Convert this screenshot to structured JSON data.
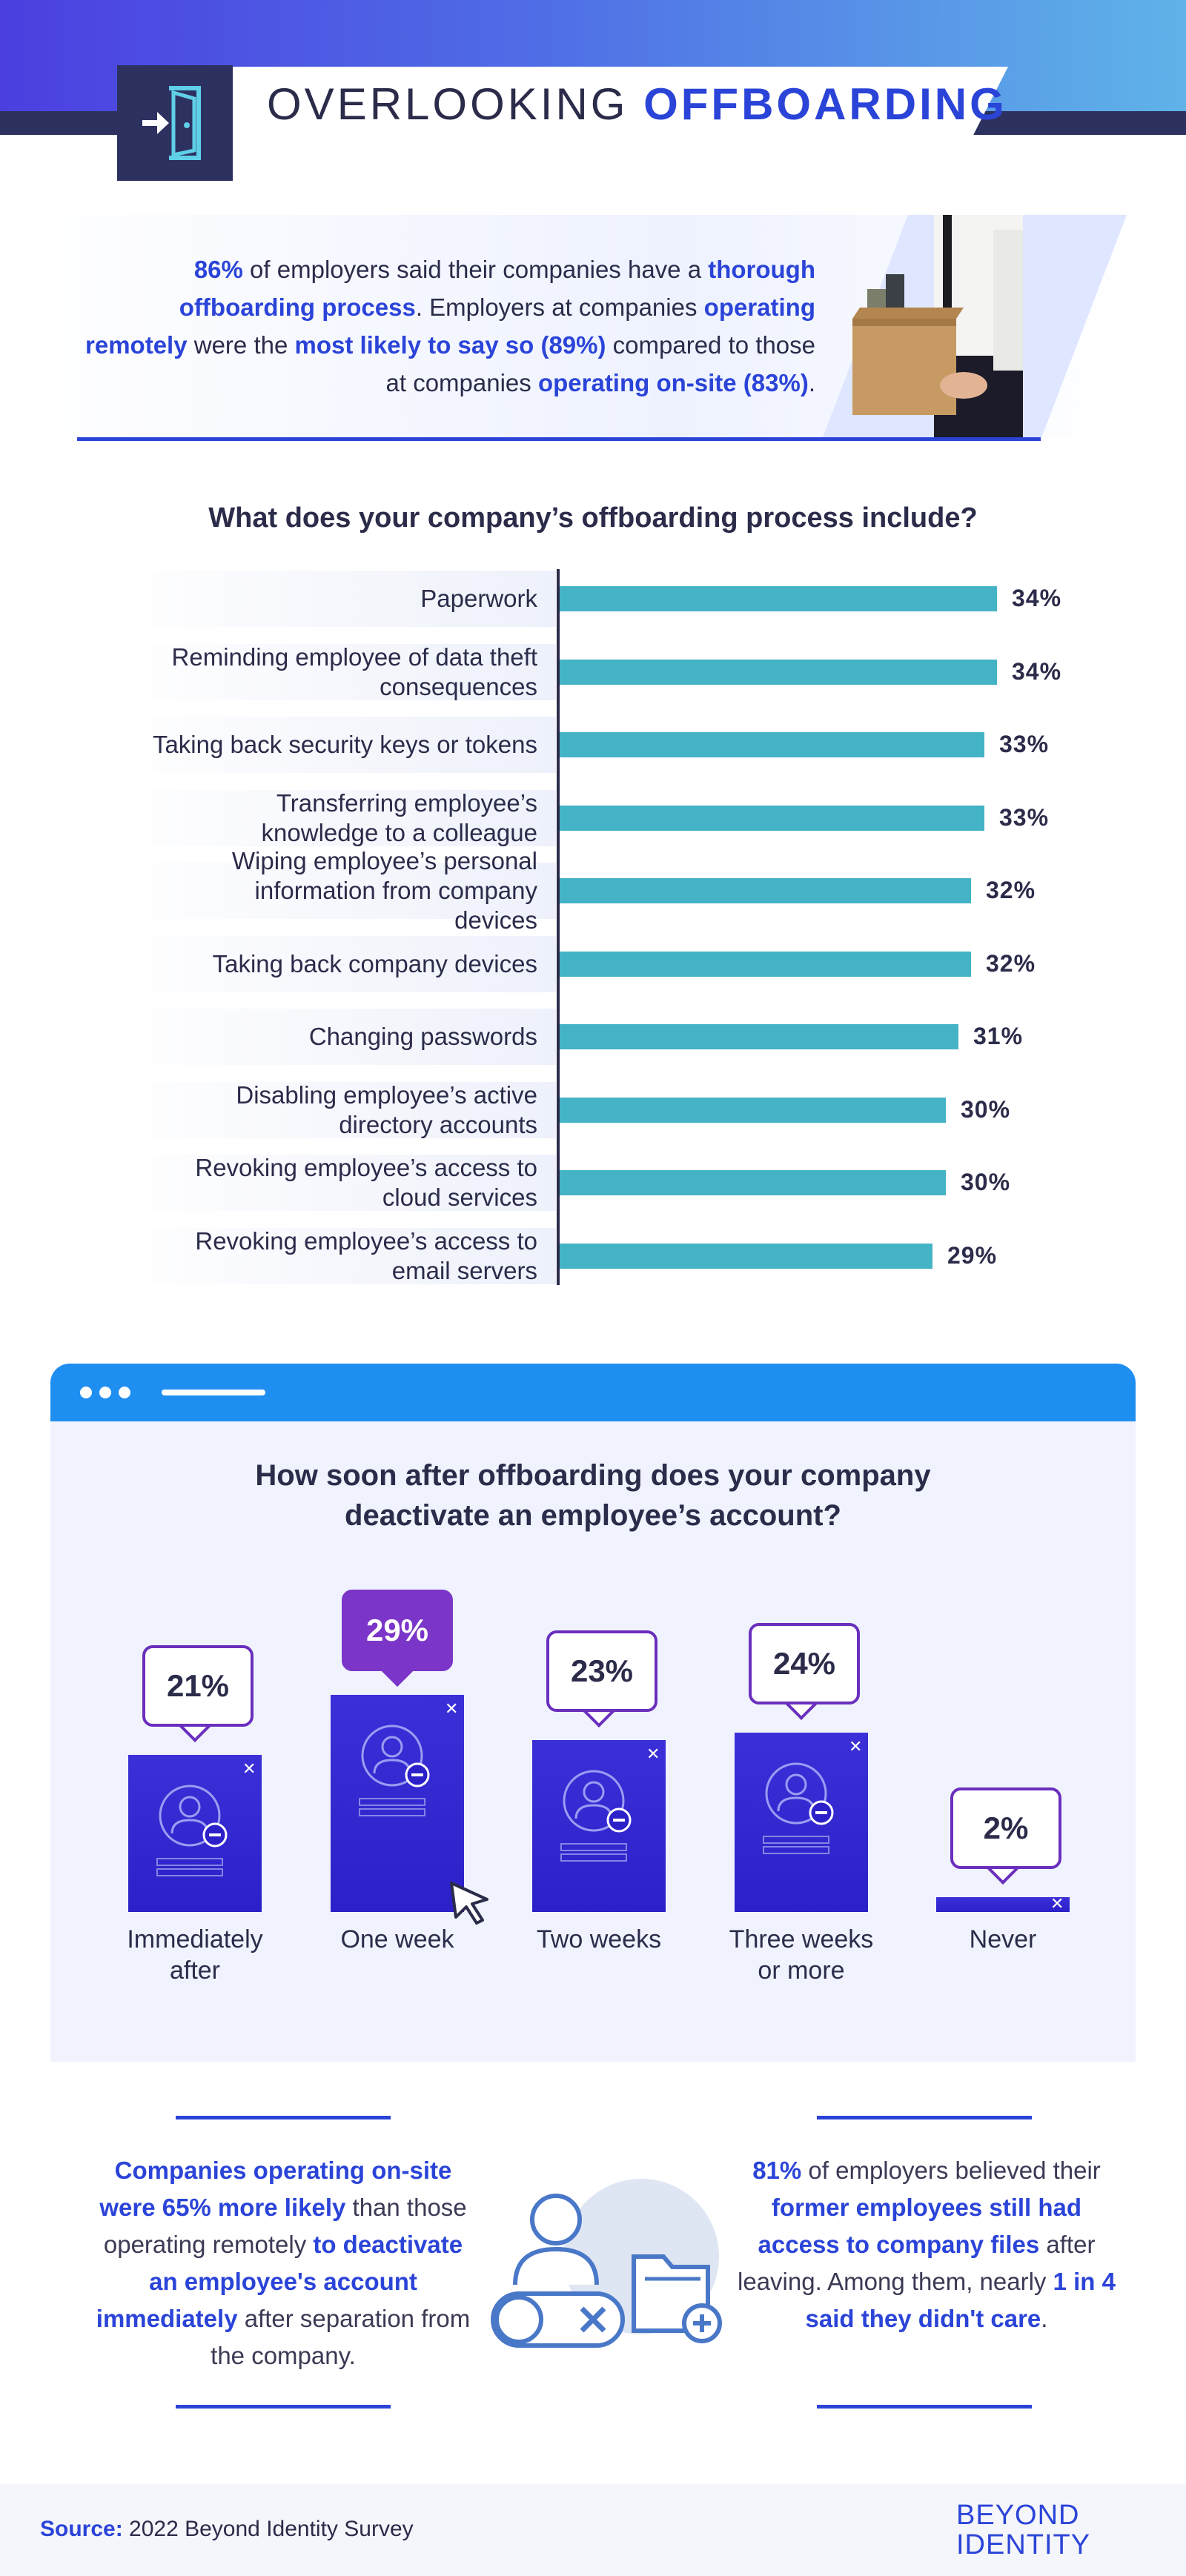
{
  "header": {
    "title_light": "OVERLOOKING",
    "title_bold": "OFFBOARDING",
    "icon": "door-exit-icon"
  },
  "intro": {
    "stat": "86%",
    "t1": " of employers said their companies have a ",
    "hl1": "thorough offboarding process",
    "t2": ". Employers at companies ",
    "hl2": "operating remotely",
    "t3": " were the ",
    "hl3": "most likely to say so (89%)",
    "t4": " compared to those at companies ",
    "hl4": "operating on-site (83%)",
    "t5": "."
  },
  "chart_data": [
    {
      "type": "bar",
      "orientation": "horizontal",
      "title": "What does your company’s offboarding process include?",
      "categories": [
        "Paperwork",
        "Reminding employee of data theft consequences",
        "Taking back security keys or tokens",
        "Transferring employee’s knowledge to a colleague",
        "Wiping employee’s personal information from company devices",
        "Taking back company devices",
        "Changing passwords",
        "Disabling employee’s active directory accounts",
        "Revoking employee’s access to cloud services",
        "Revoking employee’s access to email servers"
      ],
      "values": [
        34,
        34,
        33,
        33,
        32,
        32,
        31,
        30,
        30,
        29
      ],
      "labels": [
        "34%",
        "34%",
        "33%",
        "33%",
        "32%",
        "32%",
        "31%",
        "30%",
        "30%",
        "29%"
      ],
      "xlim": [
        0,
        34
      ],
      "color": "#44b3c6"
    },
    {
      "type": "bar",
      "orientation": "vertical",
      "title": "How soon after offboarding does your company deactivate an employee’s account?",
      "categories": [
        "Immediately after",
        "One week",
        "Two weeks",
        "Three weeks or more",
        "Never"
      ],
      "values": [
        21,
        29,
        23,
        24,
        2
      ],
      "labels": [
        "21%",
        "29%",
        "23%",
        "24%",
        "2%"
      ],
      "ylim": [
        0,
        29
      ],
      "highlight_index": 1,
      "color": "#3b2fd8"
    }
  ],
  "bottom": {
    "left": {
      "hl1": "Companies operating on-site were 65% more likely",
      "t1": " than those operating remotely ",
      "hl2": "to deactivate an employee's account immediately",
      "t2": " after separation from the company."
    },
    "right": {
      "hl1": "81%",
      "t1": " of employers believed their ",
      "hl2": "former employees still had access to company files",
      "t2": " after leaving. Among them, nearly ",
      "hl3": "1 in 4 said they didn't care",
      "t3": "."
    }
  },
  "footer": {
    "source_label": "Source:",
    "source_text": " 2022 Beyond Identity Survey",
    "logo_line1": "BEYOND",
    "logo_line2": "IDENTITY"
  },
  "colors": {
    "accent": "#2b44d8",
    "navy": "#2c3160",
    "teal_bar": "#44b3c6",
    "purple_card": "#3b2fd8",
    "bubble_border": "#6a2fbd",
    "window_bar": "#1f8ef1"
  }
}
